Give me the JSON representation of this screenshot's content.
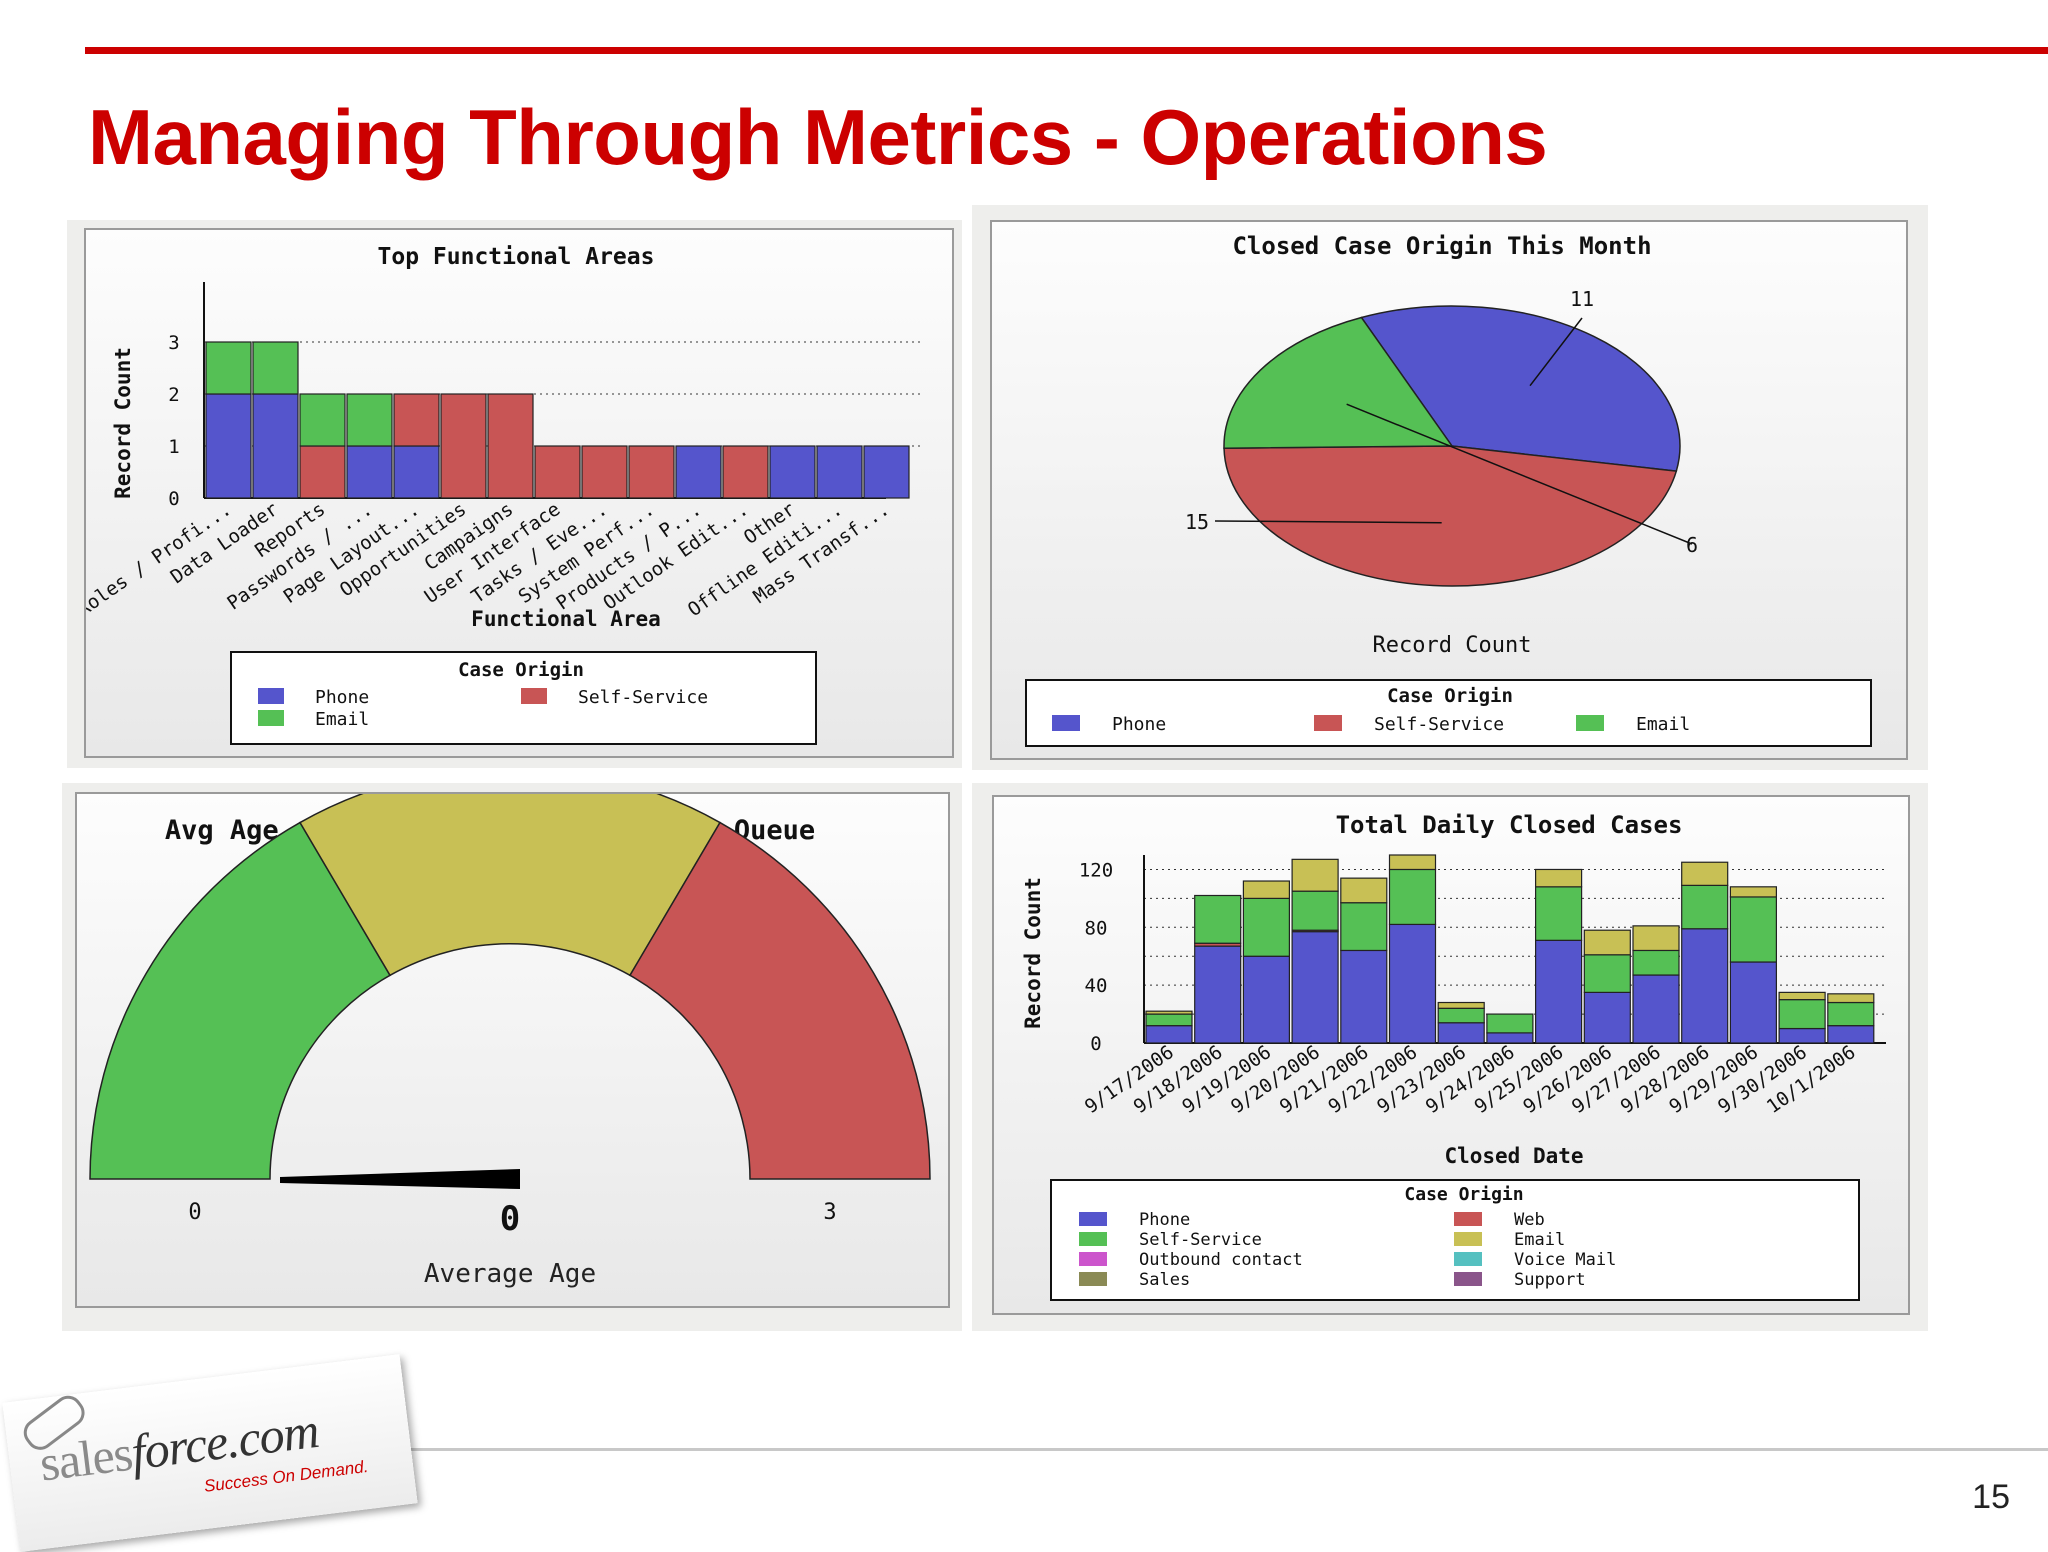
{
  "slide": {
    "title": "Managing Through Metrics - Operations",
    "page_number": "15",
    "logo": {
      "brand_prefix": "sales",
      "brand_main": "force.com",
      "tagline": "Success On Demand."
    }
  },
  "colors": {
    "title_red": "#cc0000",
    "phone": "#5555cc",
    "self_service": "#c85555",
    "email": "#55c055",
    "web": "#c85555",
    "email_olive": "#c8c055",
    "outbound": "#cc55cc",
    "voice_mail": "#55c0c0",
    "sales": "#8a8a55",
    "support": "#8a558a"
  },
  "chart_data": [
    {
      "id": "top-functional-areas",
      "type": "bar",
      "stacked": true,
      "title": "Top Functional Areas",
      "xlabel": "Functional Area",
      "ylabel": "Record Count",
      "ylim": [
        0,
        4
      ],
      "yticks": [
        0,
        1,
        2,
        3
      ],
      "categories": [
        "Roles / Profi...",
        "Data Loader",
        "Reports",
        "Passwords / ...",
        "Page Layout...",
        "Opportunities",
        "Campaigns",
        "User Interface",
        "Tasks / Eve...",
        "System Perf...",
        "Products / P...",
        "Outlook Edit...",
        "Other",
        "Offline Editi...",
        "Mass Transf..."
      ],
      "series": [
        {
          "name": "Phone",
          "color": "#5555cc",
          "values": [
            2,
            2,
            0,
            1,
            1,
            0,
            0,
            0,
            0,
            0,
            1,
            0,
            1,
            1,
            1
          ]
        },
        {
          "name": "Self-Service",
          "color": "#c85555",
          "values": [
            0,
            0,
            1,
            0,
            1,
            2,
            2,
            1,
            1,
            1,
            0,
            1,
            0,
            0,
            0
          ]
        },
        {
          "name": "Email",
          "color": "#55c055",
          "values": [
            1,
            1,
            1,
            1,
            0,
            0,
            0,
            0,
            0,
            0,
            0,
            0,
            0,
            0,
            0
          ]
        }
      ],
      "legend": {
        "title": "Case Origin",
        "position": "bottom"
      }
    },
    {
      "id": "closed-case-origin",
      "type": "pie",
      "title": "Closed Case Origin This Month",
      "xlabel": "Record Count",
      "categories": [
        "Phone",
        "Self-Service",
        "Email"
      ],
      "values": [
        11,
        15,
        6
      ],
      "colors": [
        "#5555cc",
        "#c85555",
        "#55c055"
      ],
      "legend": {
        "title": "Case Origin",
        "position": "bottom"
      }
    },
    {
      "id": "avg-age-gauge",
      "type": "gauge",
      "title": "Avg Age of Cases in Global Premier Queue",
      "xlabel": "Average Age",
      "min": 0,
      "max": 3,
      "value": 0,
      "value_label": "0",
      "min_label": "0",
      "max_label": "3",
      "bands": [
        {
          "from": 0,
          "to": 1,
          "color": "#55c055"
        },
        {
          "from": 1,
          "to": 2,
          "color": "#c8c055"
        },
        {
          "from": 2,
          "to": 3,
          "color": "#c85555"
        }
      ]
    },
    {
      "id": "total-daily-closed",
      "type": "bar",
      "stacked": true,
      "title": "Total Daily Closed Cases",
      "xlabel": "Closed Date",
      "ylabel": "Record Count",
      "ylim": [
        0,
        130
      ],
      "yticks": [
        0,
        40,
        80,
        120
      ],
      "categories": [
        "9/17/2006",
        "9/18/2006",
        "9/19/2006",
        "9/20/2006",
        "9/21/2006",
        "9/22/2006",
        "9/23/2006",
        "9/24/2006",
        "9/25/2006",
        "9/26/2006",
        "9/27/2006",
        "9/28/2006",
        "9/29/2006",
        "9/30/2006",
        "10/1/2006"
      ],
      "series": [
        {
          "name": "Phone",
          "color": "#5555cc",
          "values": [
            12,
            67,
            60,
            77,
            64,
            82,
            14,
            7,
            71,
            35,
            47,
            79,
            56,
            10,
            12
          ]
        },
        {
          "name": "Web",
          "color": "#c85555",
          "values": [
            0,
            2,
            0,
            1,
            0,
            0,
            0,
            0,
            0,
            0,
            0,
            0,
            0,
            0,
            0
          ]
        },
        {
          "name": "Self-Service",
          "color": "#55c055",
          "values": [
            8,
            33,
            40,
            27,
            33,
            38,
            10,
            13,
            37,
            26,
            17,
            30,
            45,
            20,
            16
          ]
        },
        {
          "name": "Email",
          "color": "#c8c055",
          "values": [
            2,
            0,
            12,
            22,
            17,
            10,
            4,
            0,
            12,
            17,
            17,
            16,
            7,
            5,
            6
          ]
        },
        {
          "name": "Outbound contact",
          "color": "#cc55cc",
          "values": [
            0,
            0,
            0,
            0,
            0,
            0,
            0,
            0,
            0,
            0,
            0,
            0,
            0,
            0,
            0
          ]
        },
        {
          "name": "Voice Mail",
          "color": "#55c0c0",
          "values": [
            0,
            0,
            0,
            0,
            0,
            0,
            0,
            0,
            0,
            0,
            0,
            0,
            0,
            0,
            0
          ]
        },
        {
          "name": "Sales",
          "color": "#8a8a55",
          "values": [
            0,
            0,
            0,
            0,
            0,
            0,
            0,
            0,
            0,
            0,
            0,
            0,
            0,
            0,
            0
          ]
        },
        {
          "name": "Support",
          "color": "#8a558a",
          "values": [
            0,
            0,
            0,
            0,
            0,
            0,
            0,
            0,
            0,
            0,
            0,
            0,
            0,
            0,
            0
          ]
        }
      ],
      "legend": {
        "title": "Case Origin",
        "position": "bottom"
      }
    }
  ]
}
